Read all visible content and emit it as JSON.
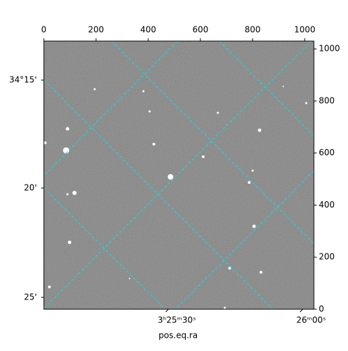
{
  "chart_data": {
    "type": "image",
    "xlim": [
      0,
      1035
    ],
    "ylim": [
      0,
      1030
    ],
    "xticks": [
      0,
      200,
      400,
      600,
      800,
      1000
    ],
    "yticks": [
      0,
      200,
      400,
      600,
      800,
      1000
    ],
    "dec_ticks": [
      "34°15'",
      "20'",
      "25'"
    ],
    "ra_ticks": [
      "3ʰ25ᵐ30ˢ",
      "26ᵐ00ˢ"
    ],
    "xlabel": "pos.eq.ra",
    "grid_color": "#00e5e5"
  }
}
